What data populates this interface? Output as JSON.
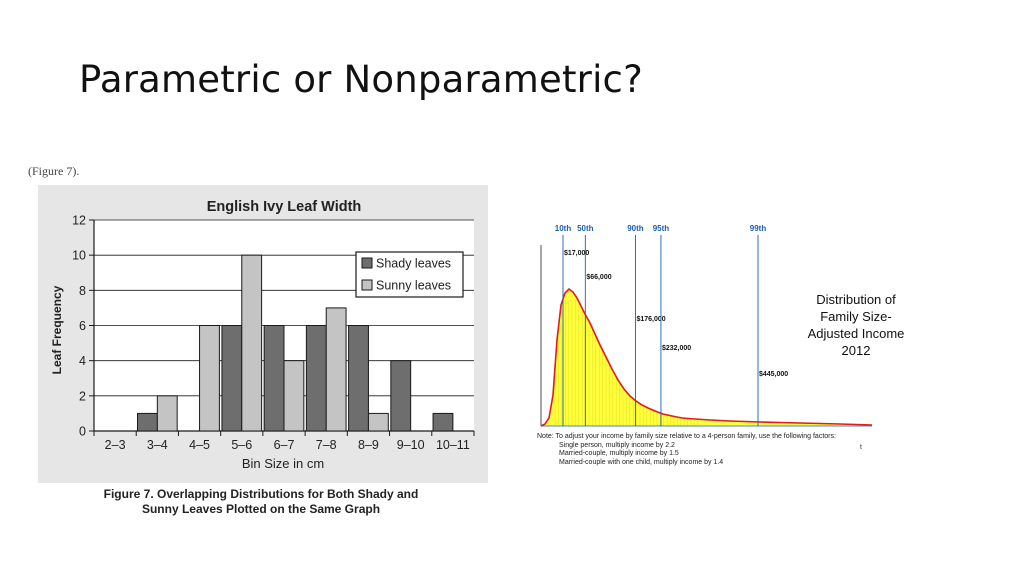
{
  "slide": {
    "title": "Parametric or Nonparametric?",
    "caption_top": "(Figure 7).",
    "caption_bottom_line1": "Figure 7. Overlapping Distributions for Both Shady and",
    "caption_bottom_line2": "Sunny Leaves Plotted on the Same Graph"
  },
  "income": {
    "title_line1": "Distribution of",
    "title_line2": "Family Size-",
    "title_line3": "Adjusted Income",
    "title_line4": "2012",
    "note_line1": "Note:  To adjust your income by family size relative to a 4-person family, use the following factors:",
    "note_line2": "Single person, multiply income by 2.2",
    "note_line3": "Married-couple, multiply income by 1.5",
    "note_line4": "Married-couple with one child, multiply income by 1.4",
    "trailing_mark": "t"
  },
  "chart_data": [
    {
      "type": "bar",
      "title": "English Ivy Leaf Width",
      "xlabel": "Bin Size in cm",
      "ylabel": "Leaf Frequency",
      "ylim": [
        0,
        12
      ],
      "yticks": [
        0,
        2,
        4,
        6,
        8,
        10,
        12
      ],
      "grid": true,
      "legend_position": "top-right",
      "categories": [
        "2–3",
        "3–4",
        "4–5",
        "5–6",
        "6–7",
        "7–8",
        "8–9",
        "9–10",
        "10–11"
      ],
      "series": [
        {
          "name": "Shady leaves",
          "color": "#6e6e6e",
          "values": [
            0,
            1,
            0,
            6,
            6,
            6,
            6,
            4,
            1
          ]
        },
        {
          "name": "Sunny leaves",
          "color": "#c4c4c4",
          "values": [
            0,
            2,
            6,
            10,
            4,
            7,
            1,
            0,
            0
          ]
        }
      ]
    },
    {
      "type": "area",
      "fill_color": "#ffff33",
      "line_color": "#e21b1b",
      "marker_color": "#1a5fb4",
      "percentiles": [
        {
          "label": "10th",
          "value": "$17,000",
          "income": 17000
        },
        {
          "label": "50th",
          "value": "$66,000",
          "income": 66000
        },
        {
          "label": "90th",
          "value": "$176,000",
          "income": 176000
        },
        {
          "label": "95th",
          "value": "$232,000",
          "income": 232000
        },
        {
          "label": "99th",
          "value": "$445,000",
          "income": 445000
        }
      ]
    }
  ]
}
